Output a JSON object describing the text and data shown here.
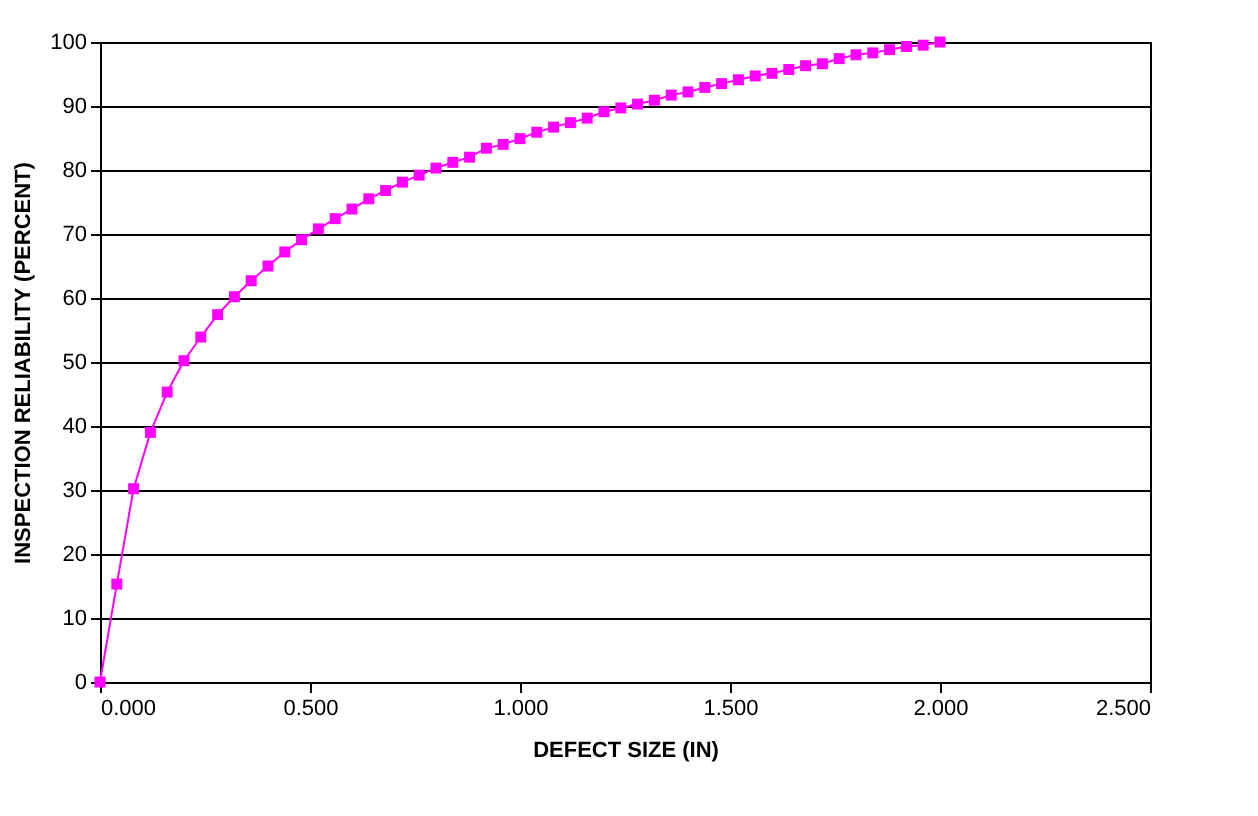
{
  "chart_data": {
    "type": "line",
    "xlabel": "DEFECT SIZE (IN)",
    "ylabel": "INSPECTION RELIABILITY (PERCENT)",
    "x": [
      0,
      0.04,
      0.08,
      0.12,
      0.16,
      0.2,
      0.24,
      0.28,
      0.32,
      0.36,
      0.4,
      0.44,
      0.48,
      0.52,
      0.56,
      0.6,
      0.64,
      0.68,
      0.72,
      0.76,
      0.8,
      0.84,
      0.88,
      0.92,
      0.96,
      1.0,
      1.04,
      1.08,
      1.12,
      1.16,
      1.2,
      1.24,
      1.28,
      1.32,
      1.36,
      1.4,
      1.44,
      1.48,
      1.52,
      1.56,
      1.6,
      1.64,
      1.68,
      1.72,
      1.76,
      1.8,
      1.84,
      1.88,
      1.92,
      1.96,
      2.0
    ],
    "series": [
      {
        "color": "#ff00ff",
        "values": [
          0,
          15.3,
          30.2,
          39.0,
          45.3,
          50.2,
          53.9,
          57.4,
          60.2,
          62.7,
          65.0,
          67.2,
          69.1,
          70.8,
          72.4,
          73.9,
          75.5,
          76.8,
          78.1,
          79.2,
          80.3,
          81.2,
          82.0,
          83.4,
          84.0,
          84.9,
          85.9,
          86.7,
          87.4,
          88.1,
          89.1,
          89.7,
          90.3,
          90.9,
          91.7,
          92.2,
          92.9,
          93.5,
          94.1,
          94.7,
          95.1,
          95.7,
          96.3,
          96.6,
          97.4,
          98.0,
          98.3,
          98.8,
          99.3,
          99.5,
          100
        ]
      }
    ],
    "xlim": [
      0,
      2.5
    ],
    "xticks": [
      {
        "value": 0,
        "label": "0.000"
      },
      {
        "value": 0.5,
        "label": "0.500"
      },
      {
        "value": 1,
        "label": "1.000"
      },
      {
        "value": 1.5,
        "label": "1.500"
      },
      {
        "value": 2,
        "label": "2.000"
      },
      {
        "value": 2.5,
        "label": "2.500"
      }
    ],
    "ylim": [
      0,
      100
    ],
    "yticks": [
      0,
      10,
      20,
      30,
      40,
      50,
      60,
      70,
      80,
      90,
      100
    ],
    "grid": "y",
    "marker": "square",
    "line_style": "solid"
  }
}
